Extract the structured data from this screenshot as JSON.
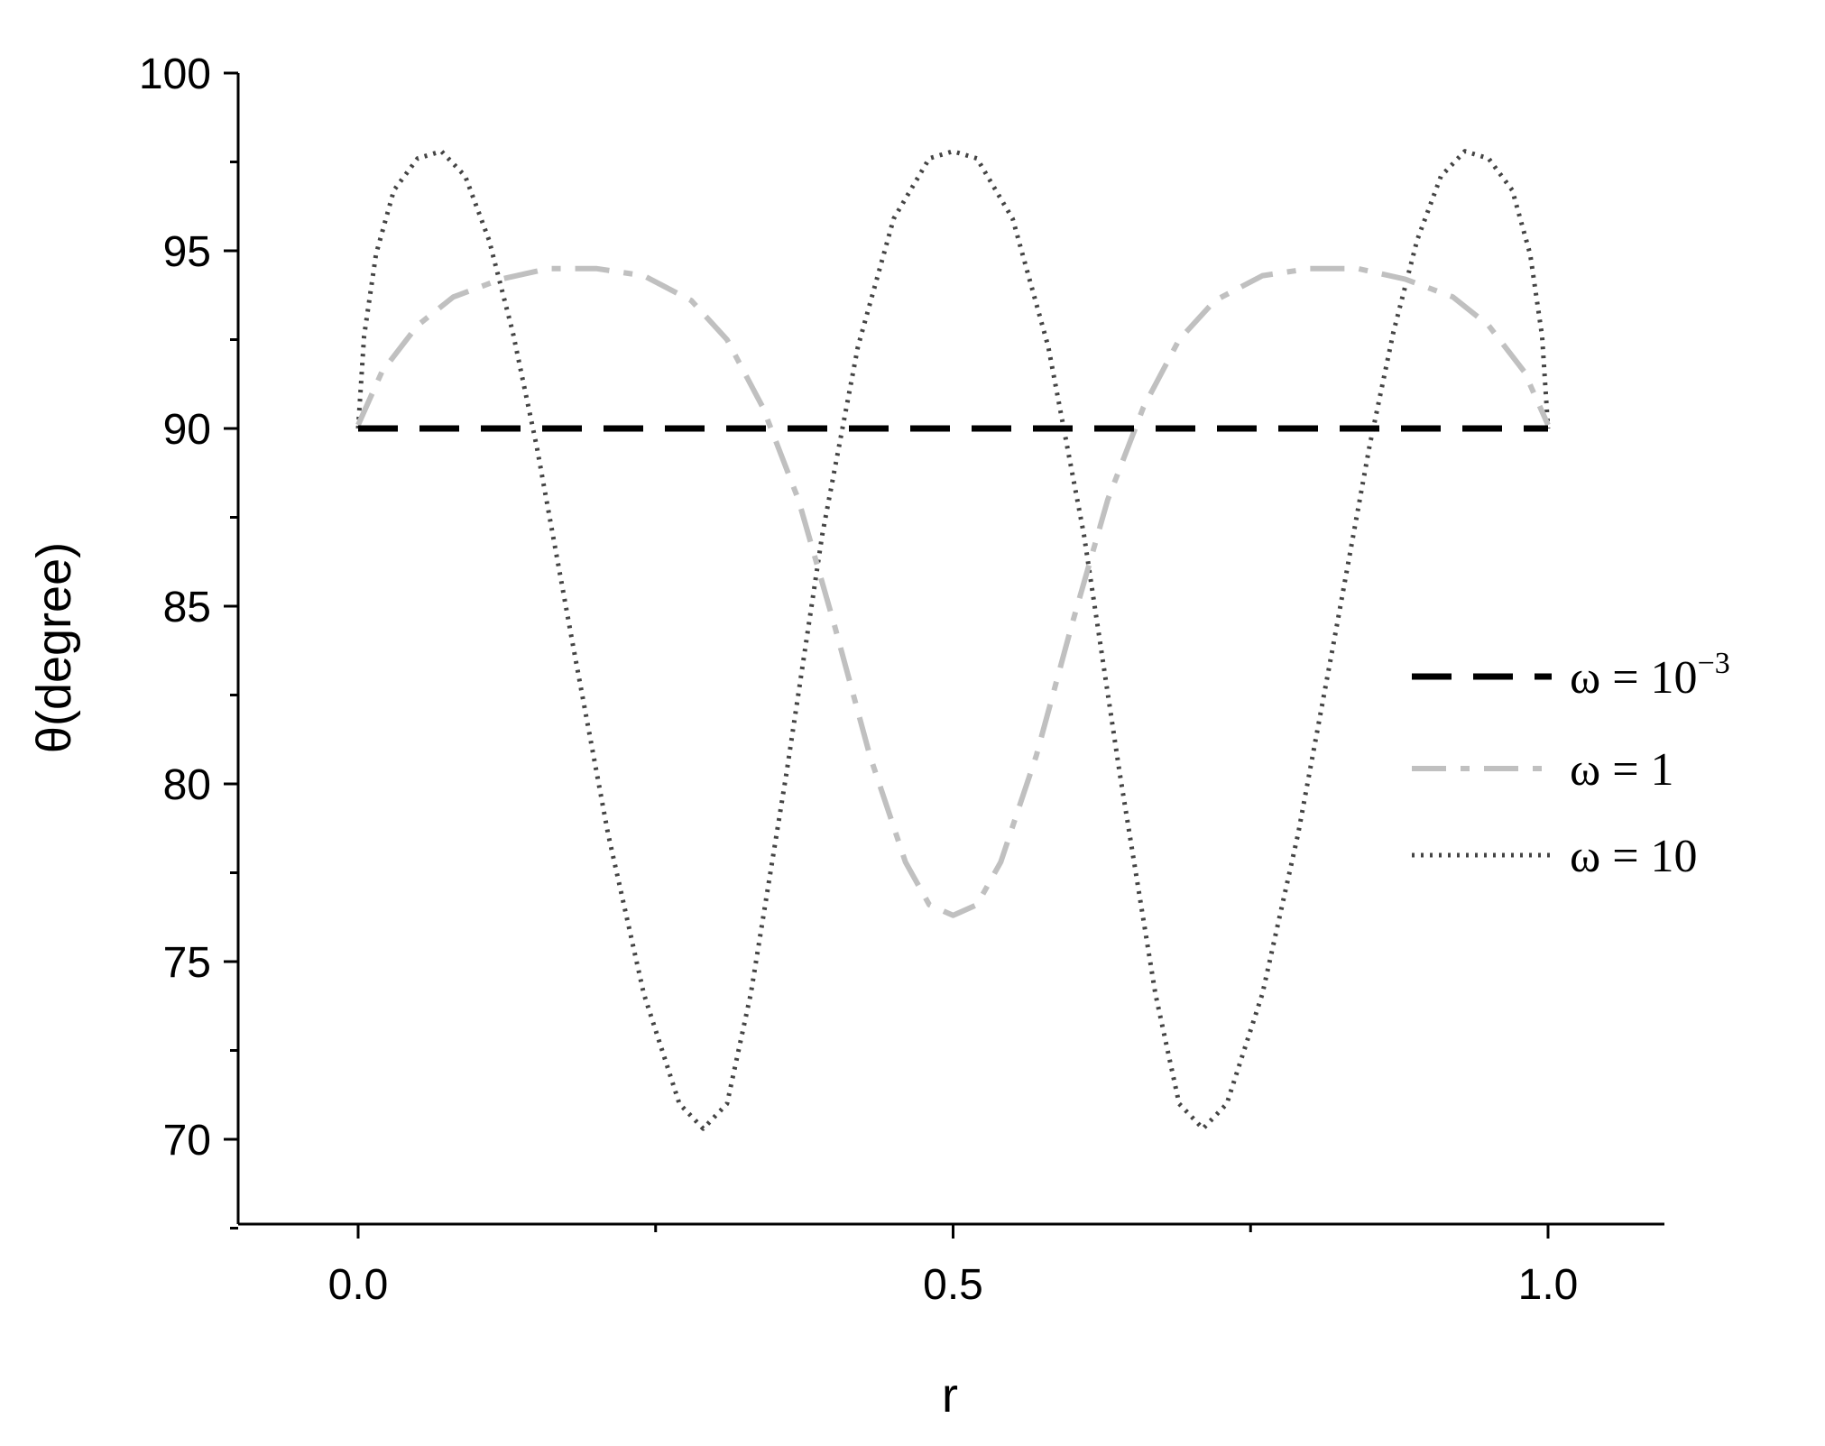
{
  "chart_data": {
    "type": "line",
    "xlabel": "r",
    "ylabel": "θ(degree)",
    "xlim": [
      -0.1,
      1.1
    ],
    "ylim": [
      67.5,
      100
    ],
    "x_ticks": [
      0.0,
      0.5,
      1.0
    ],
    "x_tick_labels": [
      "0.0",
      "0.5",
      "1.0"
    ],
    "x_minor_ticks": [
      0.25,
      0.75
    ],
    "y_ticks": [
      70,
      75,
      80,
      85,
      90,
      95,
      100
    ],
    "y_tick_labels": [
      "70",
      "75",
      "80",
      "85",
      "90",
      "95",
      "100"
    ],
    "grid": false,
    "legend_position": "right",
    "series": [
      {
        "name": "ω = 10⁻³",
        "legend_main": "ω = 10",
        "legend_sup": "−3",
        "style": "dashed",
        "color": "#000000",
        "x": [
          0.0,
          0.1,
          0.2,
          0.3,
          0.4,
          0.5,
          0.6,
          0.7,
          0.8,
          0.9,
          1.0
        ],
        "y": [
          90,
          90,
          90,
          90,
          90,
          90,
          90,
          90,
          90,
          90,
          90
        ]
      },
      {
        "name": "ω = 1",
        "legend_main": "ω = 1",
        "style": "dash-dot",
        "color": "#c0c0c0",
        "x": [
          0.0,
          0.02,
          0.05,
          0.08,
          0.12,
          0.16,
          0.2,
          0.24,
          0.28,
          0.31,
          0.34,
          0.37,
          0.4,
          0.43,
          0.46,
          0.48,
          0.5,
          0.52,
          0.54,
          0.57,
          0.6,
          0.63,
          0.66,
          0.69,
          0.72,
          0.76,
          0.8,
          0.84,
          0.88,
          0.92,
          0.95,
          0.98,
          1.0
        ],
        "y": [
          90.1,
          91.6,
          92.9,
          93.7,
          94.2,
          94.5,
          94.5,
          94.3,
          93.6,
          92.5,
          90.6,
          88.0,
          84.5,
          80.8,
          77.8,
          76.6,
          76.3,
          76.6,
          77.8,
          80.8,
          84.5,
          88.0,
          90.6,
          92.5,
          93.6,
          94.3,
          94.5,
          94.5,
          94.2,
          93.7,
          92.9,
          91.6,
          90.1
        ]
      },
      {
        "name": "ω = 10",
        "legend_main": "ω = 10",
        "style": "dotted",
        "color": "#444444",
        "x": [
          0.0,
          0.005,
          0.015,
          0.03,
          0.05,
          0.07,
          0.09,
          0.11,
          0.13,
          0.15,
          0.18,
          0.21,
          0.24,
          0.27,
          0.29,
          0.31,
          0.33,
          0.36,
          0.39,
          0.42,
          0.45,
          0.48,
          0.5,
          0.52,
          0.55,
          0.58,
          0.61,
          0.64,
          0.67,
          0.69,
          0.71,
          0.73,
          0.76,
          0.79,
          0.82,
          0.85,
          0.87,
          0.89,
          0.91,
          0.93,
          0.95,
          0.97,
          0.985,
          0.995,
          1.0
        ],
        "y": [
          90.0,
          92.6,
          94.9,
          96.7,
          97.6,
          97.8,
          97.1,
          95.3,
          92.7,
          89.5,
          84.0,
          78.6,
          74.1,
          71.0,
          70.3,
          71.0,
          74.1,
          80.3,
          87.0,
          92.3,
          95.9,
          97.6,
          97.8,
          97.6,
          95.9,
          92.3,
          87.0,
          80.3,
          74.1,
          71.0,
          70.3,
          71.0,
          74.1,
          78.6,
          84.0,
          89.5,
          92.7,
          95.3,
          97.1,
          97.8,
          97.6,
          96.7,
          94.9,
          92.6,
          90.0
        ]
      }
    ]
  }
}
